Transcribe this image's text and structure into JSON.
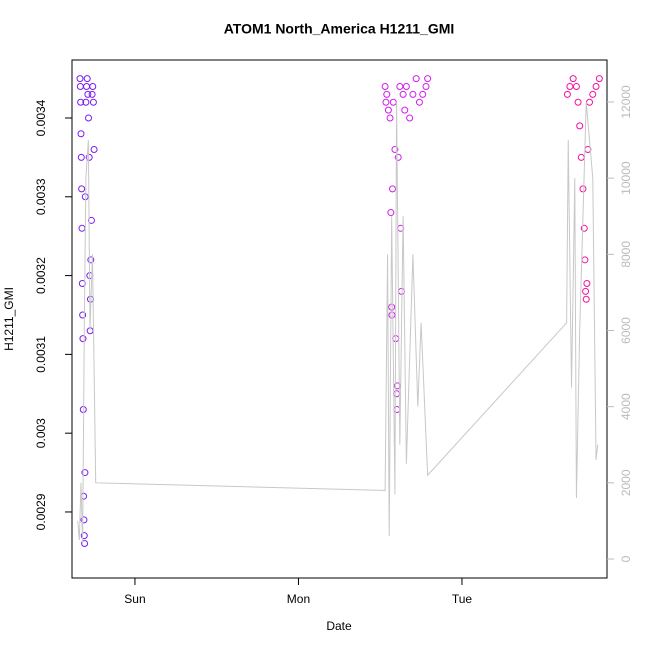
{
  "chart_data": {
    "type": "scatter",
    "title": "ATOM1 North_America H1211_GMI",
    "x_label": "Date",
    "y_label": "H1211_GMI",
    "xlim": [
      0.615,
      3.887
    ],
    "xticks": [
      {
        "value": 1,
        "label": "Sun"
      },
      {
        "value": 2,
        "label": "Mon"
      },
      {
        "value": 3,
        "label": "Tue"
      }
    ],
    "ylim": [
      0.0028162,
      0.0034736
    ],
    "yticks": [
      0.0029,
      0.003,
      0.0031,
      0.0032,
      0.0033,
      0.0034
    ],
    "y2lim": [
      -499,
      13102
    ],
    "y2ticks": [
      0,
      2000,
      4000,
      6000,
      8000,
      10000,
      12000
    ],
    "y2_color": "#bbbbbb",
    "series": [
      {
        "color": "#7a1cf5",
        "x": [
          0.664,
          0.666,
          0.668,
          0.67,
          0.672,
          0.674,
          0.676,
          0.678,
          0.68,
          0.682,
          0.684,
          0.686,
          0.688,
          0.69,
          0.692,
          0.694,
          0.696,
          0.7,
          0.704,
          0.708,
          0.712,
          0.716,
          0.72,
          0.724,
          0.726,
          0.728,
          0.73,
          0.734,
          0.738,
          0.742,
          0.746,
          0.75
        ],
        "values": [
          0.00345,
          0.00344,
          0.00342,
          0.00338,
          0.00335,
          0.00331,
          0.00326,
          0.00319,
          0.00315,
          0.00312,
          0.00303,
          0.00292,
          0.00289,
          0.00287,
          0.00286,
          0.00295,
          0.0033,
          0.00342,
          0.00344,
          0.00345,
          0.00343,
          0.0034,
          0.00335,
          0.0032,
          0.00313,
          0.00317,
          0.00322,
          0.00327,
          0.00343,
          0.00344,
          0.00342,
          0.00336
        ]
      },
      {
        "color": "#d21cf0",
        "x": [
          2.53,
          2.535,
          2.54,
          2.55,
          2.56,
          2.565,
          2.57,
          2.572,
          2.575,
          2.58,
          2.59,
          2.595,
          2.6,
          2.602,
          2.605,
          2.61,
          2.62,
          2.625,
          2.63,
          2.64,
          2.65,
          2.66,
          2.68,
          2.7,
          2.72,
          2.74,
          2.76,
          2.78,
          2.79
        ],
        "values": [
          0.00344,
          0.00342,
          0.00343,
          0.00341,
          0.0034,
          0.00328,
          0.00316,
          0.00315,
          0.00331,
          0.00342,
          0.00336,
          0.00312,
          0.00305,
          0.00303,
          0.00306,
          0.00335,
          0.00344,
          0.00326,
          0.00318,
          0.00343,
          0.00341,
          0.00344,
          0.0034,
          0.00343,
          0.00345,
          0.00342,
          0.00343,
          0.00344,
          0.00345
        ]
      },
      {
        "color": "#f5109e",
        "x": [
          3.645,
          3.66,
          3.68,
          3.7,
          3.71,
          3.72,
          3.73,
          3.74,
          3.748,
          3.752,
          3.756,
          3.76,
          3.764,
          3.77,
          3.78,
          3.8,
          3.82,
          3.84
        ],
        "values": [
          0.00343,
          0.00344,
          0.00345,
          0.00344,
          0.00342,
          0.00339,
          0.00335,
          0.00331,
          0.00326,
          0.00322,
          0.00318,
          0.00317,
          0.00319,
          0.00336,
          0.00342,
          0.00343,
          0.00344,
          0.00345
        ]
      },
      {
        "color": "#c8c8c8",
        "axis": "y2",
        "style": "line",
        "x": [
          0.65,
          0.66,
          0.67,
          0.68,
          0.69,
          0.7,
          0.715,
          0.725,
          0.74,
          0.76,
          2.53,
          2.545,
          2.555,
          2.57,
          2.59,
          2.6,
          2.62,
          2.64,
          2.66,
          2.7,
          2.73,
          2.75,
          2.79,
          3.64,
          3.65,
          3.67,
          3.69,
          3.7,
          3.72,
          3.76,
          3.8,
          3.82,
          3.83
        ],
        "values": [
          1000,
          500,
          2000,
          400,
          6000,
          10000,
          11000,
          6000,
          8000,
          2000,
          1800,
          8000,
          600,
          9000,
          1700,
          12000,
          3000,
          9000,
          2500,
          8000,
          4000,
          6200,
          2200,
          6200,
          11000,
          4500,
          10000,
          1600,
          6000,
          12000,
          10000,
          2600,
          3000
        ]
      }
    ]
  }
}
